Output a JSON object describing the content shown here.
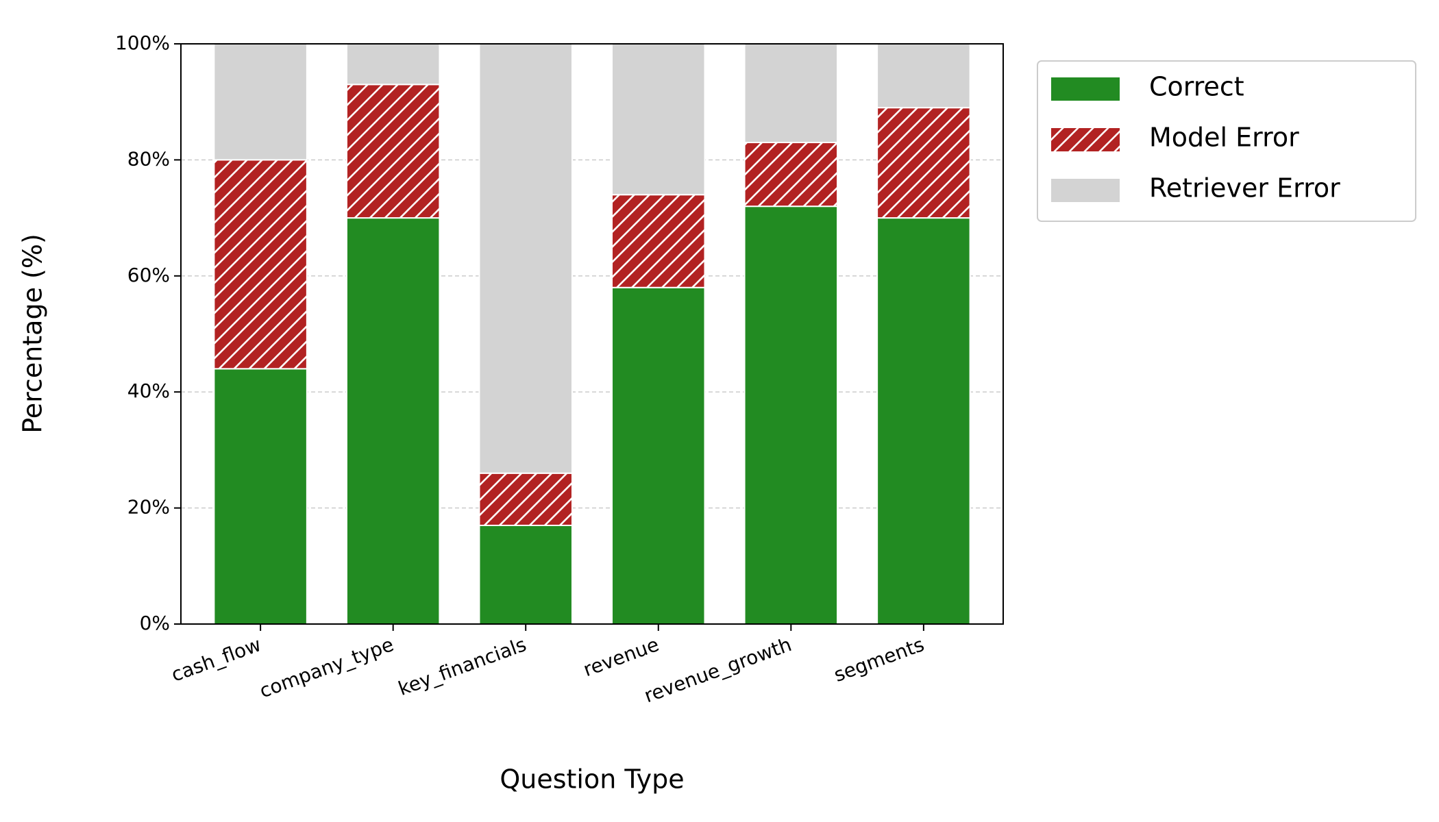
{
  "chart_data": {
    "type": "stacked_bar",
    "xlabel": "Question Type",
    "ylabel": "Percentage (%)",
    "categories": [
      "cash_flow",
      "company_type",
      "key_financials",
      "revenue",
      "revenue_growth",
      "segments"
    ],
    "series": [
      {
        "name": "Correct",
        "color": "#228b22",
        "values": [
          44,
          70,
          17,
          58,
          72,
          70
        ]
      },
      {
        "name": "Model Error",
        "color": "#b22222",
        "hatch": "//",
        "values": [
          36,
          23,
          9,
          16,
          11,
          19
        ]
      },
      {
        "name": "Retriever Error",
        "color": "#d3d3d3",
        "values": [
          20,
          7,
          74,
          26,
          17,
          11
        ]
      }
    ],
    "ylim": [
      0,
      100
    ],
    "yticks": [
      {
        "value": 0,
        "label": "0%"
      },
      {
        "value": 20,
        "label": "20%"
      },
      {
        "value": 40,
        "label": "40%"
      },
      {
        "value": 60,
        "label": "60%"
      },
      {
        "value": 80,
        "label": "80%"
      },
      {
        "value": 100,
        "label": "100%"
      }
    ],
    "grid": true,
    "legend": "outside-upper-right"
  }
}
